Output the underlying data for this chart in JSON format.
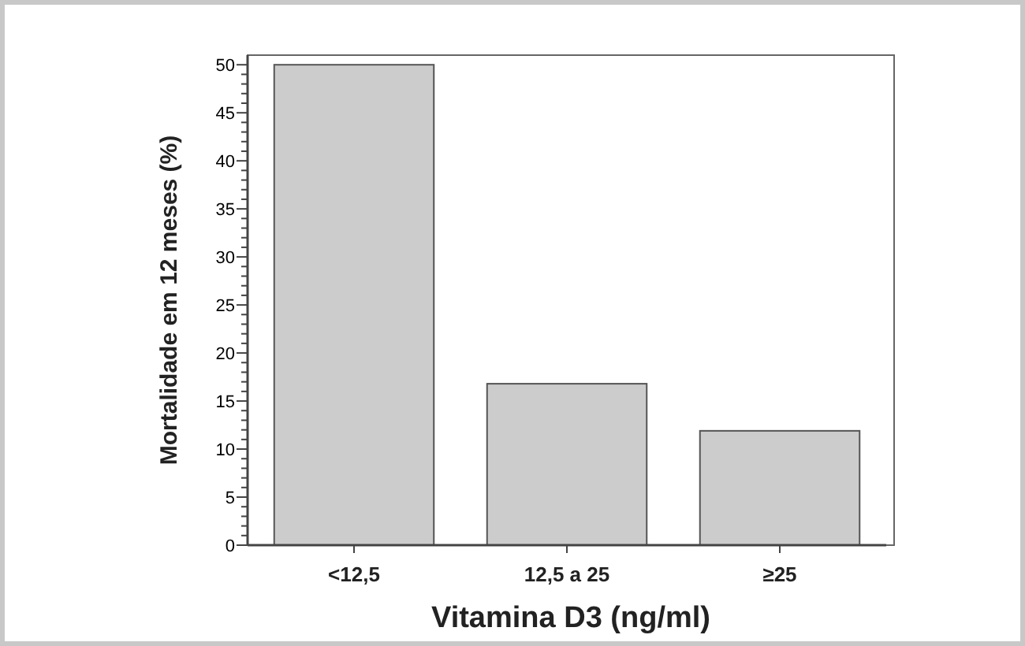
{
  "chart_data": {
    "type": "bar",
    "xlabel": "Vitamina D3 (ng/ml)",
    "ylabel": "Mortalidade em 12 meses (%)",
    "categories": [
      "<12,5",
      "12,5 a 25",
      "≥25"
    ],
    "values": [
      50,
      16.8,
      11.9
    ],
    "color": "#cccccc",
    "ylim": [
      0,
      51
    ],
    "yticks": [
      0,
      {
        "value": 1,
        "label": null
      },
      {
        "value": 2,
        "label": null
      },
      {
        "value": 3,
        "label": null
      },
      {
        "value": 4,
        "label": null
      },
      5,
      {
        "value": 6,
        "label": null
      },
      {
        "value": 7,
        "label": null
      },
      {
        "value": 8,
        "label": null
      },
      {
        "value": 9,
        "label": null
      },
      10,
      {
        "value": 11,
        "label": null
      },
      {
        "value": 12,
        "label": null
      },
      {
        "value": 13,
        "label": null
      },
      {
        "value": 14,
        "label": null
      },
      15,
      {
        "value": 16,
        "label": null
      },
      {
        "value": 17,
        "label": null
      },
      {
        "value": 18,
        "label": null
      },
      {
        "value": 19,
        "label": null
      },
      20,
      {
        "value": 21,
        "label": null
      },
      {
        "value": 22,
        "label": null
      },
      {
        "value": 23,
        "label": null
      },
      {
        "value": 24,
        "label": null
      },
      25,
      {
        "value": 26,
        "label": null
      },
      {
        "value": 27,
        "label": null
      },
      {
        "value": 28,
        "label": null
      },
      {
        "value": 29,
        "label": null
      },
      30,
      {
        "value": 31,
        "label": null
      },
      {
        "value": 32,
        "label": null
      },
      {
        "value": 33,
        "label": null
      },
      {
        "value": 34,
        "label": null
      },
      35,
      {
        "value": 36,
        "label": null
      },
      {
        "value": 37,
        "label": null
      },
      {
        "value": 38,
        "label": null
      },
      {
        "value": 39,
        "label": null
      },
      40,
      {
        "value": 41,
        "label": null
      },
      {
        "value": 42,
        "label": null
      },
      {
        "value": 43,
        "label": null
      },
      {
        "value": 44,
        "label": null
      },
      45,
      {
        "value": 46,
        "label": null
      },
      {
        "value": 47,
        "label": null
      },
      {
        "value": 48,
        "label": null
      },
      {
        "value": 49,
        "label": null
      },
      50
    ],
    "grid": false
  }
}
